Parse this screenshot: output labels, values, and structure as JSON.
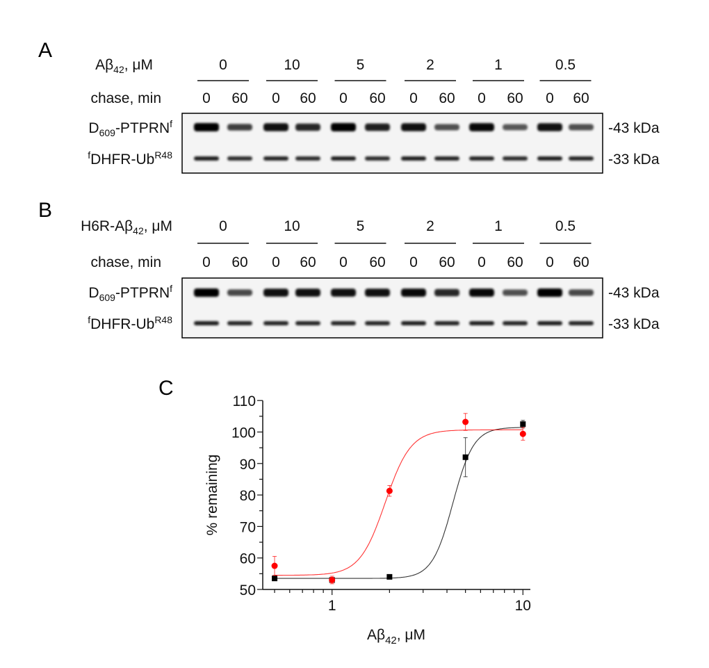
{
  "panels": {
    "A": {
      "letter": "A",
      "treatment_label": "Aβ",
      "treatment_sub": "42",
      "treatment_unit": ", μM",
      "concentrations": [
        "0",
        "10",
        "5",
        "2",
        "1",
        "0.5"
      ],
      "chase_label": "chase, min",
      "chase_times": [
        "0",
        "60"
      ],
      "band1_main": "D",
      "band1_sub": "609",
      "band1_rest": "-PTPRN",
      "band1_sup": "f",
      "band2_sup": "f",
      "band2_main": "DHFR-Ub",
      "band2_sup2": "R48",
      "mw1": "-43 kDa",
      "mw2": "-33 kDa",
      "band1_intensity": [
        1.0,
        0.6,
        0.9,
        0.75,
        1.0,
        0.8,
        0.9,
        0.5,
        0.95,
        0.45,
        0.9,
        0.5
      ],
      "band2_intensity": [
        0.8,
        0.7,
        0.75,
        0.7,
        0.8,
        0.7,
        0.8,
        0.75,
        0.75,
        0.7,
        0.8,
        0.75
      ]
    },
    "B": {
      "letter": "B",
      "treatment_label": "H6R-Aβ",
      "treatment_sub": "42",
      "treatment_unit": ", μM",
      "concentrations": [
        "0",
        "10",
        "5",
        "2",
        "1",
        "0.5"
      ],
      "chase_label": "chase, min",
      "chase_times": [
        "0",
        "60"
      ],
      "band1_main": "D",
      "band1_sub": "609",
      "band1_rest": "-PTPRN",
      "band1_sup": "f",
      "band2_sup": "f",
      "band2_main": "DHFR-Ub",
      "band2_sup2": "R48",
      "mw1": "-43 kDa",
      "mw2": "-33 kDa",
      "band1_intensity": [
        1.0,
        0.55,
        0.9,
        0.9,
        0.9,
        0.9,
        0.95,
        0.75,
        0.95,
        0.5,
        1.0,
        0.55
      ],
      "band2_intensity": [
        0.8,
        0.75,
        0.75,
        0.75,
        0.75,
        0.75,
        0.8,
        0.75,
        0.8,
        0.75,
        0.8,
        0.75
      ]
    },
    "C": {
      "letter": "C"
    }
  },
  "chart_data": {
    "type": "scatter",
    "title": "",
    "xlabel": "Aβ42, μM",
    "xlabel_main": "Aβ",
    "xlabel_sub": "42",
    "xlabel_unit": ", μM",
    "ylabel": "% remaining",
    "xscale": "log",
    "xlim": [
      0.45,
      11.5
    ],
    "ylim": [
      50,
      110
    ],
    "xticks": [
      {
        "v": 1,
        "label": "1"
      },
      {
        "v": 10,
        "label": "10"
      }
    ],
    "yticks": [
      {
        "v": 50,
        "label": "50"
      },
      {
        "v": 60,
        "label": "60"
      },
      {
        "v": 70,
        "label": "70"
      },
      {
        "v": 80,
        "label": "80"
      },
      {
        "v": 90,
        "label": "90"
      },
      {
        "v": 100,
        "label": "100"
      },
      {
        "v": 110,
        "label": "110"
      }
    ],
    "series": [
      {
        "name": "Aβ42",
        "color": "#000000",
        "marker": "square",
        "x": [
          0.5,
          1,
          2,
          5,
          10
        ],
        "y": [
          53.5,
          53.0,
          54.0,
          92.0,
          102.5
        ],
        "err": [
          0.5,
          0.8,
          0.4,
          6.2,
          1.2
        ],
        "fit": {
          "bottom": 53.5,
          "top": 101.5,
          "ec50": 4.3,
          "hill": 8
        }
      },
      {
        "name": "H6R-Aβ42",
        "color": "#ff0000",
        "marker": "circle",
        "x": [
          0.5,
          1,
          2,
          5,
          10
        ],
        "y": [
          57.5,
          53.0,
          81.3,
          103.2,
          99.4
        ],
        "err": [
          3.0,
          1.2,
          1.7,
          2.7,
          2.0
        ],
        "fit": {
          "bottom": 54.5,
          "top": 100.7,
          "ec50": 1.9,
          "hill": 6.5
        }
      }
    ]
  }
}
